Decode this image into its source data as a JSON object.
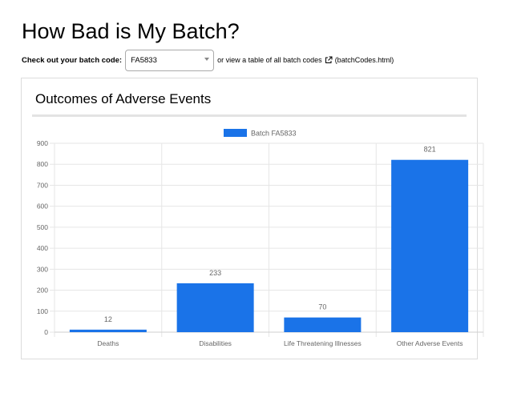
{
  "page": {
    "title": "How Bad is My Batch?"
  },
  "batch_selector": {
    "label": "Check out your batch code:",
    "selected": "FA5833",
    "text_after": "or view a table of all batch codes",
    "link_text": "(batchCodes.html)"
  },
  "card": {
    "title": "Outcomes of Adverse Events"
  },
  "colors": {
    "bar": "#1a73e8",
    "grid": "#e6e6e6",
    "axis_text": "#666666"
  },
  "chart_data": {
    "type": "bar",
    "categories": [
      "Deaths",
      "Disabilities",
      "Life Threatening Illnesses",
      "Other Adverse Events"
    ],
    "series": [
      {
        "name": "Batch FA5833",
        "values": [
          12,
          233,
          70,
          821
        ]
      }
    ],
    "ylim": [
      0,
      900
    ],
    "yticks": [
      0,
      100,
      200,
      300,
      400,
      500,
      600,
      700,
      800,
      900
    ],
    "data_labels": true,
    "grid": true,
    "legend": "top"
  }
}
